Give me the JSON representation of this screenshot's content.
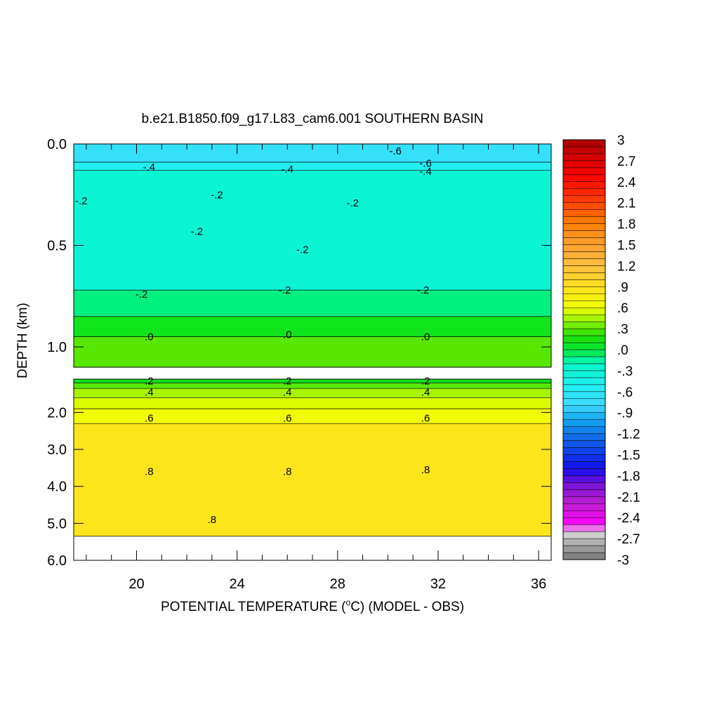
{
  "chart_data": {
    "type": "heatmap",
    "title": "b.e21.B1850.f09_g17.L83_cam6.001 SOUTHERN BASIN",
    "xlabel_prefix": "POTENTIAL TEMPERATURE (",
    "xlabel_degree": "o",
    "xlabel_suffix": "C) (MODEL - OBS)",
    "ylabel": "DEPTH (km)",
    "x_range": [
      17.5,
      36.5
    ],
    "x_ticks": [
      {
        "value": 20,
        "label": "20"
      },
      {
        "value": 24,
        "label": "24"
      },
      {
        "value": 28,
        "label": "28"
      },
      {
        "value": 32,
        "label": "32"
      },
      {
        "value": 36,
        "label": "36"
      }
    ],
    "upper_panel": {
      "depth_range": [
        0.0,
        1.1
      ],
      "y_ticks": [
        {
          "value": 0.0,
          "label": "0.0"
        },
        {
          "value": 0.5,
          "label": "0.5"
        },
        {
          "value": 1.0,
          "label": "1.0"
        }
      ],
      "layers": [
        {
          "from": 0.0,
          "to": 0.09,
          "value": -0.7
        },
        {
          "from": 0.09,
          "to": 0.13,
          "value": -0.5
        },
        {
          "from": 0.13,
          "to": 0.72,
          "value": -0.3
        },
        {
          "from": 0.72,
          "to": 0.85,
          "value": -0.1
        },
        {
          "from": 0.85,
          "to": 0.95,
          "value": 0.1
        },
        {
          "from": 0.95,
          "to": 1.1,
          "value": 0.3
        }
      ],
      "contour_labels": [
        {
          "x": 20.5,
          "d": 0.115,
          "label": "-.4"
        },
        {
          "x": 26.0,
          "d": 0.125,
          "label": "-.4"
        },
        {
          "x": 31.5,
          "d": 0.135,
          "label": "-.4"
        },
        {
          "x": 30.3,
          "d": 0.035,
          "label": "-.6"
        },
        {
          "x": 31.5,
          "d": 0.095,
          "label": "-.6"
        },
        {
          "x": 17.8,
          "d": 0.28,
          "label": "-.2"
        },
        {
          "x": 23.2,
          "d": 0.25,
          "label": "-.2"
        },
        {
          "x": 28.6,
          "d": 0.29,
          "label": "-.2"
        },
        {
          "x": 22.4,
          "d": 0.43,
          "label": "-.2"
        },
        {
          "x": 26.6,
          "d": 0.52,
          "label": "-.2"
        },
        {
          "x": 20.2,
          "d": 0.74,
          "label": "-.2"
        },
        {
          "x": 25.9,
          "d": 0.72,
          "label": "-.2"
        },
        {
          "x": 31.4,
          "d": 0.72,
          "label": "-.2"
        },
        {
          "x": 20.5,
          "d": 0.95,
          "label": ".0"
        },
        {
          "x": 26.0,
          "d": 0.94,
          "label": ".0"
        },
        {
          "x": 31.5,
          "d": 0.95,
          "label": ".0"
        }
      ]
    },
    "lower_panel": {
      "depth_range": [
        1.1,
        6.0
      ],
      "y_ticks": [
        {
          "value": 2.0,
          "label": "2.0"
        },
        {
          "value": 3.0,
          "label": "3.0"
        },
        {
          "value": 4.0,
          "label": "4.0"
        },
        {
          "value": 5.0,
          "label": "5.0"
        },
        {
          "value": 6.0,
          "label": "6.0"
        }
      ],
      "layers": [
        {
          "from": 1.1,
          "to": 1.2,
          "value": 0.1
        },
        {
          "from": 1.2,
          "to": 1.35,
          "value": 0.3
        },
        {
          "from": 1.35,
          "to": 1.6,
          "value": 0.45
        },
        {
          "from": 1.6,
          "to": 1.9,
          "value": 0.55
        },
        {
          "from": 1.9,
          "to": 2.3,
          "value": 0.65
        },
        {
          "from": 2.3,
          "to": 5.35,
          "value": 0.85
        }
      ],
      "no_data_below_depth": 5.35,
      "contour_labels": [
        {
          "x": 20.5,
          "d": 1.15,
          "label": ".2"
        },
        {
          "x": 26.0,
          "d": 1.15,
          "label": ".2"
        },
        {
          "x": 31.5,
          "d": 1.15,
          "label": ".2"
        },
        {
          "x": 20.5,
          "d": 1.45,
          "label": ".4"
        },
        {
          "x": 26.0,
          "d": 1.45,
          "label": ".4"
        },
        {
          "x": 31.5,
          "d": 1.45,
          "label": ".4"
        },
        {
          "x": 20.5,
          "d": 2.15,
          "label": ".6"
        },
        {
          "x": 26.0,
          "d": 2.15,
          "label": ".6"
        },
        {
          "x": 31.5,
          "d": 2.15,
          "label": ".6"
        },
        {
          "x": 20.5,
          "d": 3.6,
          "label": ".8"
        },
        {
          "x": 26.0,
          "d": 3.6,
          "label": ".8"
        },
        {
          "x": 31.5,
          "d": 3.55,
          "label": ".8"
        },
        {
          "x": 23.0,
          "d": 4.9,
          "label": ".8"
        }
      ]
    },
    "colorbar": {
      "min": -3,
      "max": 3,
      "labels": [
        "3",
        "2.7",
        "2.4",
        "2.1",
        "1.8",
        "1.5",
        "1.2",
        ".9",
        ".6",
        ".3",
        ".0",
        "-.3",
        "-.6",
        "-.9",
        "-1.2",
        "-1.5",
        "-1.8",
        "-2.1",
        "-2.4",
        "-2.7",
        "-3"
      ],
      "stops": [
        {
          "v": -3.0,
          "color": "#777777"
        },
        {
          "v": -2.7,
          "color": "#bdbdbd"
        },
        {
          "v": -2.6,
          "color": "#dddddd"
        },
        {
          "v": -2.5,
          "color": "#ff00ff"
        },
        {
          "v": -2.2,
          "color": "#c020d0"
        },
        {
          "v": -1.9,
          "color": "#7010d8"
        },
        {
          "v": -1.7,
          "color": "#1010ee"
        },
        {
          "v": -1.3,
          "color": "#1060e8"
        },
        {
          "v": -1.0,
          "color": "#10a8f0"
        },
        {
          "v": -0.8,
          "color": "#40d8ff"
        },
        {
          "v": -0.5,
          "color": "#20f0f0"
        },
        {
          "v": -0.2,
          "color": "#00f8c8"
        },
        {
          "v": 0.0,
          "color": "#00e838"
        },
        {
          "v": 0.2,
          "color": "#20e000"
        },
        {
          "v": 0.4,
          "color": "#90f000"
        },
        {
          "v": 0.6,
          "color": "#f0ff00"
        },
        {
          "v": 0.9,
          "color": "#ffe020"
        },
        {
          "v": 1.2,
          "color": "#ffc040"
        },
        {
          "v": 1.5,
          "color": "#ffa030"
        },
        {
          "v": 1.8,
          "color": "#ff8000"
        },
        {
          "v": 2.2,
          "color": "#ff3000"
        },
        {
          "v": 2.5,
          "color": "#ff0000"
        },
        {
          "v": 3.0,
          "color": "#aa0000"
        }
      ]
    }
  }
}
